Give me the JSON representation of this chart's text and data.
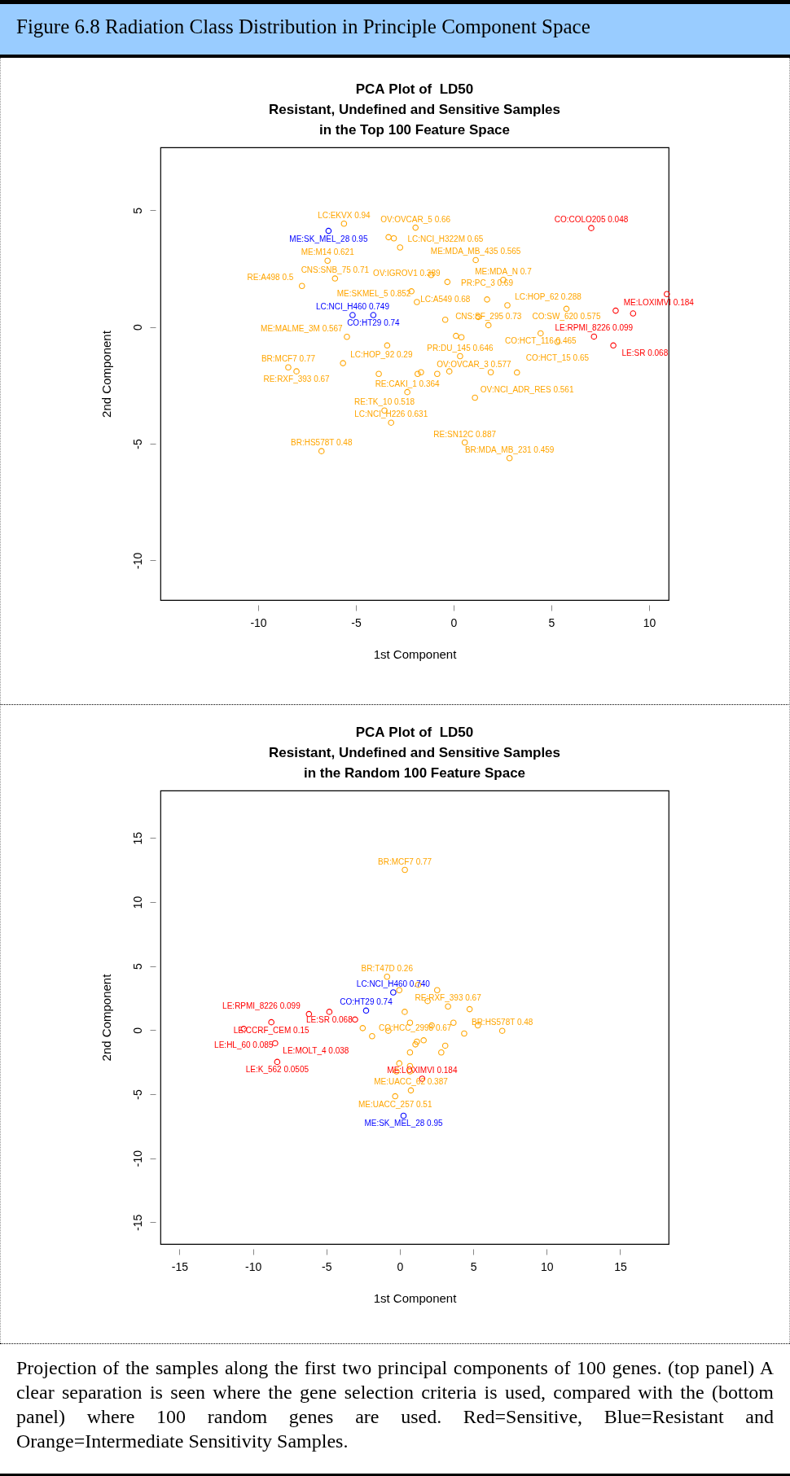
{
  "chart_data": [
    {
      "type": "scatter",
      "title": "PCA Plot of  LD50\nResistant, Undefined and Sensitive Samples\nin the Top 100 Feature Space",
      "xlabel": "1st Component",
      "ylabel": "2nd Component",
      "marker": "circle",
      "xlim": [
        -15,
        11
      ],
      "xticks": [
        -10,
        -5,
        0,
        5,
        10
      ],
      "ylim": [
        -11.7,
        7.7
      ],
      "yticks": [
        -10,
        -5,
        0,
        5
      ],
      "series": [
        {
          "color": "#ff0000",
          "x": [
            7.04,
            8.29,
            9.18,
            10.91,
            7.18,
            8.17
          ],
          "values": [
            4.24,
            0.7,
            0.58,
            1.41,
            -0.41,
            -0.79
          ]
        },
        {
          "color": "#0000ff",
          "x": [
            -6.4,
            -5.17,
            -4.11
          ],
          "values": [
            4.12,
            0.51,
            0.51
          ]
        },
        {
          "color": "#ffa500",
          "x": [
            -5.61,
            -6.45,
            -6.07,
            -7.76,
            -5.46,
            -3.4,
            -8.46,
            -8.04,
            -5.66,
            -3.83,
            -2.37,
            -3.54,
            -3.2,
            -6.76,
            -2.74,
            -3.33,
            -3.06,
            -1.95,
            -1.88,
            1.13,
            2.54,
            -0.32,
            -1.15,
            5.77,
            4.45,
            5.31,
            0.33,
            1.09,
            0.57,
            2.86,
            3.24,
            1.9,
            -0.22,
            -0.84,
            -1.67,
            -1.84,
            2.75,
            1.26,
            1.71,
            -0.43,
            0.12,
            0.4,
            1.78,
            -2.16
          ],
          "values": [
            4.43,
            2.84,
            2.08,
            1.76,
            -0.42,
            -0.79,
            -1.73,
            -1.9,
            -1.55,
            -2.01,
            -2.79,
            -3.58,
            -4.1,
            -5.32,
            3.41,
            3.85,
            3.8,
            4.26,
            1.07,
            2.87,
            2.02,
            1.93,
            2.23,
            0.78,
            -0.27,
            -0.64,
            -1.25,
            -3.03,
            -4.95,
            -5.62,
            -1.95,
            -1.94,
            -1.9,
            -2.01,
            -1.94,
            -2.01,
            0.93,
            0.43,
            1.18,
            0.31,
            -0.38,
            -0.44,
            0.08,
            1.53
          ]
        }
      ],
      "annotations": [
        "Figure 6.8 Radiation Class Distribution in Principle Component Space",
        {
          "text": "LC:EKVX 0.94",
          "x": -5.61,
          "y": 4.43
        },
        {
          "text": "ME:SK_MEL_28 0.95",
          "x": -6.4,
          "y": 4.12
        },
        {
          "text": "ME:M14 0.621",
          "x": -6.45,
          "y": 2.84
        },
        {
          "text": "CNS:SNB_75 0.71",
          "x": -6.07,
          "y": 2.08
        },
        {
          "text": "RE:A498 0.5",
          "x": -7.76,
          "y": 1.76
        },
        {
          "text": "LC:NCI_H460 0.749",
          "x": -5.17,
          "y": 0.51
        },
        {
          "text": "CO:HT29 0.74",
          "x": -4.11,
          "y": 0.51
        },
        {
          "text": "ME:MALME_3M 0.567",
          "x": -5.46,
          "y": -0.42
        },
        {
          "text": "BR:MCF7 0.77",
          "x": -8.46,
          "y": -1.73
        },
        {
          "text": "RE:RXF_393 0.67",
          "x": -8.04,
          "y": -1.9
        },
        {
          "text": "LC:HOP_92 0.29",
          "x": -5.66,
          "y": -1.55
        },
        {
          "text": "RE:CAKI_1 0.364",
          "x": -2.37,
          "y": -2.79
        },
        {
          "text": "RE:TK_10 0.518",
          "x": -3.54,
          "y": -3.58
        },
        {
          "text": "LC:NCI_H226 0.631",
          "x": -3.2,
          "y": -4.1
        },
        {
          "text": "BR:HS578T 0.48",
          "x": -6.76,
          "y": -5.32
        },
        {
          "text": "LC:NCI_H322M 0.65",
          "x": -2.74,
          "y": 3.41
        },
        {
          "text": "OV:OVCAR_5 0.66",
          "x": -1.95,
          "y": 4.26
        },
        {
          "text": "ME:MDA_MB_435 0.565",
          "x": 1.13,
          "y": 2.87
        },
        {
          "text": "ME:MDA_N 0.7",
          "x": 2.54,
          "y": 2.02
        },
        {
          "text": "OV:IGROV1 0.389",
          "x": -0.32,
          "y": 1.93
        },
        {
          "text": "LC:A549 0.68",
          "x": -2.16,
          "y": 1.53
        },
        {
          "text": "ME:SKMEL_5 0.852",
          "x": -1.88,
          "y": 1.07
        },
        {
          "text": "LC:HOP_62 0.288",
          "x": 2.75,
          "y": 0.93
        },
        {
          "text": "CNS:SF_295 0.73",
          "x": 1.78,
          "y": 0.08
        },
        {
          "text": "PR:PC_3 0.69",
          "x": 1.71,
          "y": 1.18
        },
        {
          "text": "CO:SW_620 0.575",
          "x": 5.77,
          "y": 0.78
        },
        {
          "text": "CO:HCT_116 0.465",
          "x": 4.45,
          "y": -0.27
        },
        {
          "text": "CO:HCT_15 0.65",
          "x": 5.31,
          "y": -0.64
        },
        {
          "text": "PR:DU_145 0.646",
          "x": 0.33,
          "y": -1.25
        },
        {
          "text": "OV:NCI_ADR_RES 0.561",
          "x": 1.09,
          "y": -3.03
        },
        {
          "text": "RE:SN12C 0.887",
          "x": 0.57,
          "y": -4.95
        },
        {
          "text": "BR:MDA_MB_231 0.459",
          "x": 2.86,
          "y": -5.62
        },
        {
          "text": "OV:OVCAR_3 0.577",
          "x": 3.24,
          "y": -1.95
        },
        {
          "text": "CO:COLO205 0.048",
          "x": 7.04,
          "y": 4.24
        },
        {
          "text": "ME:LOXIMVI 0.184",
          "x": 8.29,
          "y": 0.7
        },
        {
          "text": "LE:RPMI_8226 0.099",
          "x": 7.18,
          "y": -0.41
        },
        {
          "text": "LE:SR 0.068",
          "x": 8.17,
          "y": -0.79
        }
      ]
    },
    {
      "type": "scatter",
      "title": "PCA Plot of  LD50\nResistant, Undefined and Sensitive Samples\nin the Random 100 Feature Space",
      "xlabel": "1st Component",
      "ylabel": "2nd Component",
      "marker": "circle",
      "xlim": [
        -16.3,
        18.3
      ],
      "xticks": [
        -15,
        -10,
        -5,
        0,
        5,
        10,
        15
      ],
      "ylim": [
        -16.7,
        18.7
      ],
      "yticks": [
        -15,
        -10,
        -5,
        0,
        5,
        10,
        15
      ],
      "series": [
        {
          "color": "#ff0000",
          "x": [
            -10.63,
            -8.75,
            -8.49,
            -8.35,
            -6.19,
            -4.8,
            -3.05,
            1.52
          ],
          "values": [
            0.09,
            0.61,
            -1.03,
            -2.49,
            1.25,
            1.42,
            0.82,
            -3.8
          ]
        },
        {
          "color": "#0000ff",
          "x": [
            0.25,
            -2.3,
            -0.45
          ],
          "values": [
            -6.69,
            1.52,
            2.94
          ]
        },
        {
          "color": "#ffa500",
          "x": [
            0.34,
            6.97,
            0.75,
            -0.32,
            -0.87,
            -1.89,
            -2.53,
            3.09,
            1.16,
            1.62,
            -0.78,
            4.38,
            2.82,
            0.69,
            -0.23,
            0.69,
            1.89,
            3.28,
            4.75,
            0.33,
            -0.04,
            1.25,
            2.54,
            3.65,
            2.17,
            0.69,
            5.31,
            1.06,
            0.69,
            -0.04
          ],
          "values": [
            12.5,
            -0.06,
            -4.71,
            -5.17,
            4.16,
            -0.48,
            0.15,
            -1.22,
            -0.91,
            -0.8,
            -0.06,
            -0.27,
            -1.75,
            -1.75,
            -3.23,
            -3.23,
            2.26,
            1.84,
            1.63,
            1.42,
            3.11,
            3.53,
            3.11,
            0.57,
            0.36,
            0.57,
            0.36,
            -1.12,
            -2.81,
            -2.6
          ]
        }
      ],
      "annotations": [
        "Projection of the samples along the first two principal components of 100 genes. (top panel) A clear separation is seen where the gene selection criteria is used, compared with the (bottom panel) where 100 random genes are used. Red=Sensitive, Blue=Resistant and Orange=Intermediate Sensitivity Samples.",
        {
          "text": "BR:MCF7 0.77",
          "x": 0.34,
          "y": 12.5
        },
        {
          "text": "BR:T47D 0.26",
          "x": -0.87,
          "y": 4.16
        },
        {
          "text": "LC:NCI_H460 0.740",
          "x": -0.45,
          "y": 2.94
        },
        {
          "text": "CO:HT29 0.74",
          "x": -2.3,
          "y": 1.52
        },
        {
          "text": "LE:RPMI_8226 0.099",
          "x": -6.19,
          "y": 1.25
        },
        {
          "text": "LE:SR 0.068",
          "x": -4.8,
          "y": 1.42
        },
        {
          "text": "LE:CCRF_CEM 0.15",
          "x": -8.75,
          "y": 0.61
        },
        {
          "text": "LE:HL_60 0.085",
          "x": -10.63,
          "y": 0.09
        },
        {
          "text": "LE:MOLT_4 0.038",
          "x": -8.49,
          "y": -1.03
        },
        {
          "text": "LE:K_562 0.0505",
          "x": -8.35,
          "y": -2.49
        },
        {
          "text": "CO:HCC_2998 0.67",
          "x": -1.89,
          "y": -0.48
        },
        {
          "text": "RE:RXF_393 0.67",
          "x": 3.28,
          "y": 1.84
        },
        {
          "text": "BR:HS578T 0.48",
          "x": 6.97,
          "y": -0.06
        },
        {
          "text": "ME:LOXIMVI 0.184",
          "x": 1.52,
          "y": -3.8
        },
        {
          "text": "ME:UACC_62 0.387",
          "x": 0.75,
          "y": -4.71
        },
        {
          "text": "ME:UACC_257 0.51",
          "x": -0.32,
          "y": -5.17
        },
        {
          "text": "ME:SK_MEL_28 0.95",
          "x": 0.25,
          "y": -6.69
        }
      ]
    }
  ]
}
